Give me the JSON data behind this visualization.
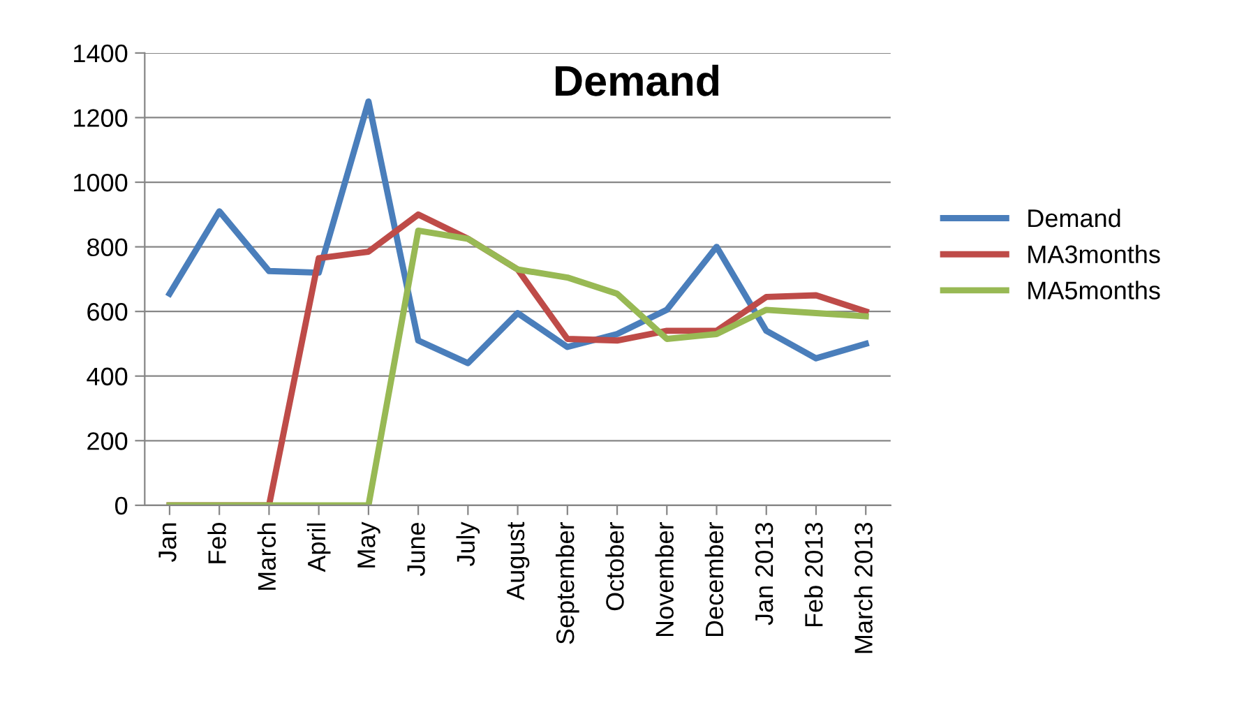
{
  "chart_data": {
    "type": "line",
    "title": "Demand",
    "categories": [
      "Jan",
      "Feb",
      "March",
      "April",
      "May",
      "June",
      "July",
      "August",
      "September",
      "October",
      "November",
      "December",
      "Jan 2013",
      "Feb 2013",
      "March 2013"
    ],
    "series": [
      {
        "name": "Demand",
        "color": "#4a7ebb",
        "values": [
          655,
          910,
          725,
          720,
          1250,
          510,
          440,
          595,
          490,
          530,
          605,
          800,
          540,
          455,
          500
        ]
      },
      {
        "name": "MA3months",
        "color": "#be4b48",
        "values": [
          0,
          0,
          0,
          765,
          785,
          900,
          825,
          730,
          515,
          510,
          540,
          540,
          645,
          650,
          600
        ]
      },
      {
        "name": "MA5months",
        "color": "#98b954",
        "values": [
          0,
          0,
          0,
          0,
          0,
          850,
          825,
          730,
          705,
          655,
          515,
          530,
          605,
          595,
          585
        ]
      }
    ],
    "ylim": [
      0,
      1400
    ],
    "yticks": [
      0,
      200,
      400,
      600,
      800,
      1000,
      1200,
      1400
    ],
    "grid": "y",
    "legend": "right",
    "marker": "none",
    "line_style": "solid"
  }
}
